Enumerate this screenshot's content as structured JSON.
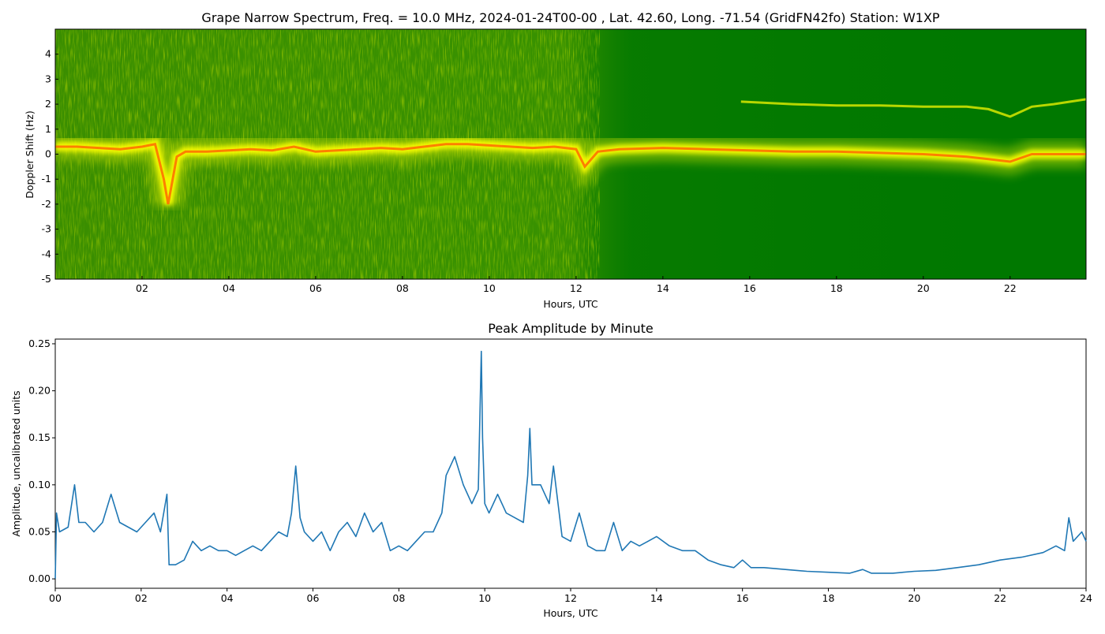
{
  "chart_data": [
    {
      "type": "heatmap",
      "title": "Grape Narrow Spectrum, Freq. = 10.0 MHz, 2024-01-24T00-00 , Lat.  42.60, Long. -71.54 (GridFN42fo) Station: W1XP",
      "xlabel": "Hours, UTC",
      "ylabel": "Doppler Shift (Hz)",
      "xlim": [
        0,
        23.75
      ],
      "ylim": [
        -5,
        5
      ],
      "x_ticks": [
        2,
        4,
        6,
        8,
        10,
        12,
        14,
        16,
        18,
        20,
        22
      ],
      "x_tick_labels": [
        "02",
        "04",
        "06",
        "08",
        "10",
        "12",
        "14",
        "16",
        "18",
        "20",
        "22"
      ],
      "y_ticks": [
        -5,
        -4,
        -3,
        -2,
        -1,
        0,
        1,
        2,
        3,
        4
      ],
      "y_tick_labels": [
        "-5",
        "-4",
        "-3",
        "-2",
        "-1",
        "0",
        "1",
        "2",
        "3",
        "4"
      ],
      "colors": {
        "background": "#007800",
        "low": "#3a8c00",
        "mid": "#d8e800",
        "high": "#ffff00",
        "peak": "#ff6a00"
      },
      "doppler_trace": {
        "x": [
          0,
          0.5,
          1,
          1.5,
          2,
          2.3,
          2.5,
          2.6,
          2.8,
          3,
          3.5,
          4,
          4.5,
          5,
          5.5,
          6,
          6.5,
          7,
          7.5,
          8,
          8.5,
          9,
          9.5,
          10,
          10.5,
          11,
          11.5,
          12,
          12.2,
          12.5,
          13,
          14,
          15,
          16,
          17,
          18,
          19,
          20,
          21,
          21.5,
          22,
          22.5,
          23,
          23.75
        ],
        "y": [
          0.3,
          0.3,
          0.25,
          0.2,
          0.3,
          0.4,
          -1.0,
          -2.0,
          -0.1,
          0.1,
          0.1,
          0.15,
          0.2,
          0.15,
          0.3,
          0.1,
          0.15,
          0.2,
          0.25,
          0.2,
          0.3,
          0.4,
          0.4,
          0.35,
          0.3,
          0.25,
          0.3,
          0.2,
          -0.5,
          0.1,
          0.2,
          0.25,
          0.2,
          0.15,
          0.1,
          0.1,
          0.05,
          0.0,
          -0.1,
          -0.2,
          -0.3,
          0.0,
          0.0,
          0.0
        ]
      },
      "secondary_trace": {
        "x": [
          15.8,
          17,
          18,
          19,
          20,
          21,
          21.5,
          22,
          22.5,
          23,
          23.75
        ],
        "y": [
          2.1,
          2.0,
          1.95,
          1.95,
          1.9,
          1.9,
          1.8,
          1.5,
          1.9,
          2.0,
          2.2
        ]
      },
      "grid": false
    },
    {
      "type": "line",
      "title": "Peak Amplitude by Minute",
      "xlabel": "Hours, UTC",
      "ylabel": "Amplitude, uncalibrated units",
      "xlim": [
        0,
        24
      ],
      "ylim": [
        -0.01,
        0.255
      ],
      "x_ticks": [
        0,
        2,
        4,
        6,
        8,
        10,
        12,
        14,
        16,
        18,
        20,
        22,
        24
      ],
      "x_tick_labels": [
        "00",
        "02",
        "04",
        "06",
        "08",
        "10",
        "12",
        "14",
        "16",
        "18",
        "20",
        "22",
        "24"
      ],
      "y_ticks": [
        0,
        0.05,
        0.1,
        0.15,
        0.2,
        0.25
      ],
      "y_tick_labels": [
        "0.00",
        "0.05",
        "0.10",
        "0.15",
        "0.20",
        "0.25"
      ],
      "line_color": "#1f77b4",
      "grid": false,
      "series": [
        {
          "x": [
            0,
            0.03,
            0.1,
            0.3,
            0.45,
            0.55,
            0.7,
            0.9,
            1.1,
            1.3,
            1.5,
            1.7,
            1.9,
            2.1,
            2.3,
            2.45,
            2.6,
            2.65,
            2.8,
            3.0,
            3.2,
            3.4,
            3.6,
            3.8,
            4.0,
            4.2,
            4.4,
            4.6,
            4.8,
            5.0,
            5.2,
            5.4,
            5.5,
            5.6,
            5.7,
            5.8,
            6.0,
            6.2,
            6.4,
            6.6,
            6.8,
            7.0,
            7.2,
            7.4,
            7.6,
            7.8,
            8.0,
            8.2,
            8.4,
            8.6,
            8.8,
            9.0,
            9.1,
            9.3,
            9.5,
            9.7,
            9.85,
            9.92,
            9.95,
            10.0,
            10.1,
            10.3,
            10.5,
            10.7,
            10.9,
            11.0,
            11.05,
            11.1,
            11.3,
            11.5,
            11.6,
            11.8,
            12.0,
            12.2,
            12.4,
            12.6,
            12.8,
            13.0,
            13.2,
            13.4,
            13.6,
            13.8,
            14.0,
            14.3,
            14.6,
            14.9,
            15.2,
            15.5,
            15.8,
            16.0,
            16.2,
            16.5,
            17.0,
            17.5,
            18.0,
            18.5,
            18.8,
            19.0,
            19.5,
            20.0,
            20.5,
            21.0,
            21.5,
            22.0,
            22.5,
            23.0,
            23.3,
            23.5,
            23.6,
            23.7,
            23.9,
            24.0
          ],
          "y": [
            0.0,
            0.07,
            0.05,
            0.055,
            0.1,
            0.06,
            0.06,
            0.05,
            0.06,
            0.09,
            0.06,
            0.055,
            0.05,
            0.06,
            0.07,
            0.05,
            0.09,
            0.015,
            0.015,
            0.02,
            0.04,
            0.03,
            0.035,
            0.03,
            0.03,
            0.025,
            0.03,
            0.035,
            0.03,
            0.04,
            0.05,
            0.045,
            0.07,
            0.12,
            0.065,
            0.05,
            0.04,
            0.05,
            0.03,
            0.05,
            0.06,
            0.045,
            0.07,
            0.05,
            0.06,
            0.03,
            0.035,
            0.03,
            0.04,
            0.05,
            0.05,
            0.07,
            0.11,
            0.13,
            0.1,
            0.08,
            0.095,
            0.242,
            0.15,
            0.08,
            0.07,
            0.09,
            0.07,
            0.065,
            0.06,
            0.11,
            0.16,
            0.1,
            0.1,
            0.08,
            0.12,
            0.045,
            0.04,
            0.07,
            0.035,
            0.03,
            0.03,
            0.06,
            0.03,
            0.04,
            0.035,
            0.04,
            0.045,
            0.035,
            0.03,
            0.03,
            0.02,
            0.015,
            0.012,
            0.02,
            0.012,
            0.012,
            0.01,
            0.008,
            0.007,
            0.006,
            0.01,
            0.006,
            0.006,
            0.008,
            0.009,
            0.012,
            0.015,
            0.02,
            0.023,
            0.028,
            0.035,
            0.03,
            0.065,
            0.04,
            0.05,
            0.04
          ]
        }
      ]
    }
  ]
}
